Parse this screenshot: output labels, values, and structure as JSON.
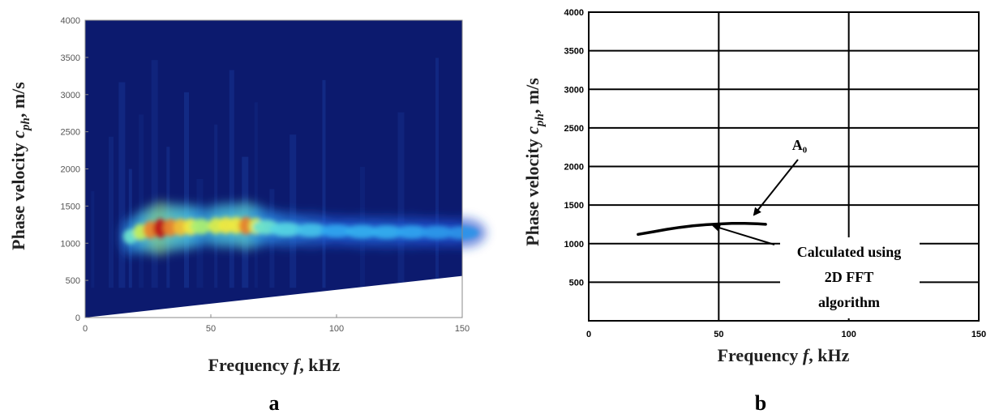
{
  "panels": [
    "a",
    "b"
  ],
  "chart_data": [
    {
      "type": "heatmap",
      "panel_label": "a",
      "xlabel_main": "Frequency ",
      "xlabel_italic": "f",
      "xlabel_tail": ", kHz",
      "ylabel_main": "Phase velocity ",
      "ylabel_italic": "c",
      "ylabel_sub": "ph",
      "ylabel_tail": ", m/s",
      "xlim": [
        0,
        150
      ],
      "ylim": [
        0,
        4000
      ],
      "x_ticks": [
        "0",
        "50",
        "100",
        "150"
      ],
      "y_ticks": [
        "0",
        "500",
        "1000",
        "1500",
        "2000",
        "2500",
        "3000",
        "3500",
        "4000"
      ],
      "background_color": "#0c1a6e",
      "masked_region_color": "#ffffff",
      "mask_boundary": {
        "x": [
          0,
          150
        ],
        "y": [
          0,
          560
        ]
      },
      "ridge": {
        "x": [
          18,
          22,
          26,
          30,
          34,
          38,
          42,
          46,
          52,
          56,
          60,
          64,
          68,
          72,
          80,
          90,
          100,
          110,
          120,
          130,
          140,
          150
        ],
        "y": [
          1090,
          1150,
          1180,
          1200,
          1210,
          1215,
          1220,
          1225,
          1235,
          1240,
          1240,
          1235,
          1230,
          1215,
          1185,
          1175,
          1165,
          1155,
          1150,
          1150,
          1145,
          1140
        ],
        "intensity": [
          0.45,
          0.6,
          0.8,
          0.95,
          0.8,
          0.75,
          0.7,
          0.55,
          0.65,
          0.7,
          0.7,
          0.8,
          0.65,
          0.45,
          0.4,
          0.35,
          0.28,
          0.3,
          0.3,
          0.28,
          0.26,
          0.25
        ]
      },
      "colormap": [
        "#0c1a6e",
        "#1f4fd0",
        "#2fa8f0",
        "#5fe0e0",
        "#b8f060",
        "#f6e83a",
        "#e04020",
        "#b00010"
      ]
    },
    {
      "type": "line",
      "panel_label": "b",
      "xlabel_main": "Frequency ",
      "xlabel_italic": "f",
      "xlabel_tail": ", kHz",
      "ylabel_main": "Phase velocity ",
      "ylabel_italic": "c",
      "ylabel_sub": "ph",
      "ylabel_tail": ", m/s",
      "xlim": [
        0,
        150
      ],
      "ylim": [
        0,
        4000
      ],
      "x_ticks": [
        "0",
        "50",
        "100",
        "150"
      ],
      "y_ticks": [
        "500",
        "1000",
        "1500",
        "2000",
        "2500",
        "3000",
        "3500",
        "4000"
      ],
      "grid": true,
      "series": [
        {
          "name": "A₀",
          "x": [
            19,
            25,
            30,
            35,
            40,
            45,
            50,
            55,
            60,
            65,
            68
          ],
          "y": [
            1120,
            1155,
            1185,
            1210,
            1230,
            1245,
            1255,
            1262,
            1262,
            1257,
            1250
          ]
        }
      ],
      "annotations": {
        "series_label": "A₀",
        "method_lines": [
          "Calculated using",
          "2D FFT",
          "algorithm"
        ]
      }
    }
  ]
}
